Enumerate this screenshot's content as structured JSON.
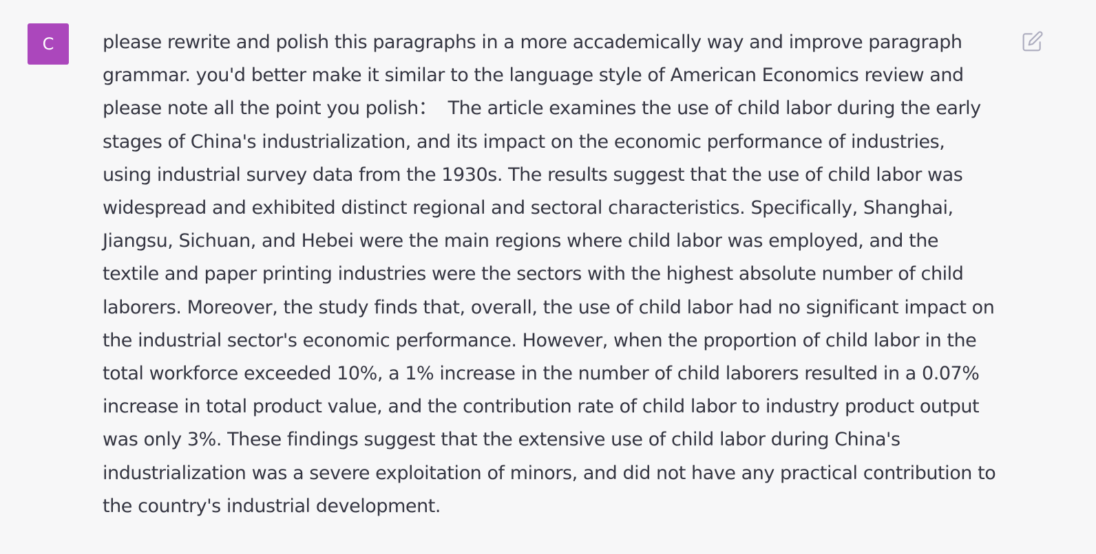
{
  "conversation": {
    "user_message": {
      "avatar_letter": "C",
      "avatar_color": "#ab47bc",
      "text": "please rewrite and polish this paragraphs in a more accademically way and improve paragraph grammar. you'd better make it similar to the language style of American Economics review and please note all the point you polish：  The article examines the use of child labor during the early stages of China's industrialization, and its impact on the economic performance of industries, using industrial survey data from the 1930s. The results suggest that the use of child labor was widespread and exhibited distinct regional and sectoral characteristics. Specifically, Shanghai, Jiangsu, Sichuan, and Hebei were the main regions where child labor was employed, and the textile and paper printing industries were the sectors with the highest absolute number of child laborers. Moreover, the study finds that, overall, the use of child labor had no significant impact on the industrial sector's economic performance. However, when the proportion of child labor in the total workforce exceeded 10%, a 1% increase in the number of child laborers resulted in a 0.07% increase in total product value, and the contribution rate of child labor to industry product output was only 3%. These findings suggest that the extensive use of child labor during China's industrialization was a severe exploitation of minors, and did not have any practical contribution to the country's industrial development.",
      "edit_icon": "edit-icon"
    }
  }
}
